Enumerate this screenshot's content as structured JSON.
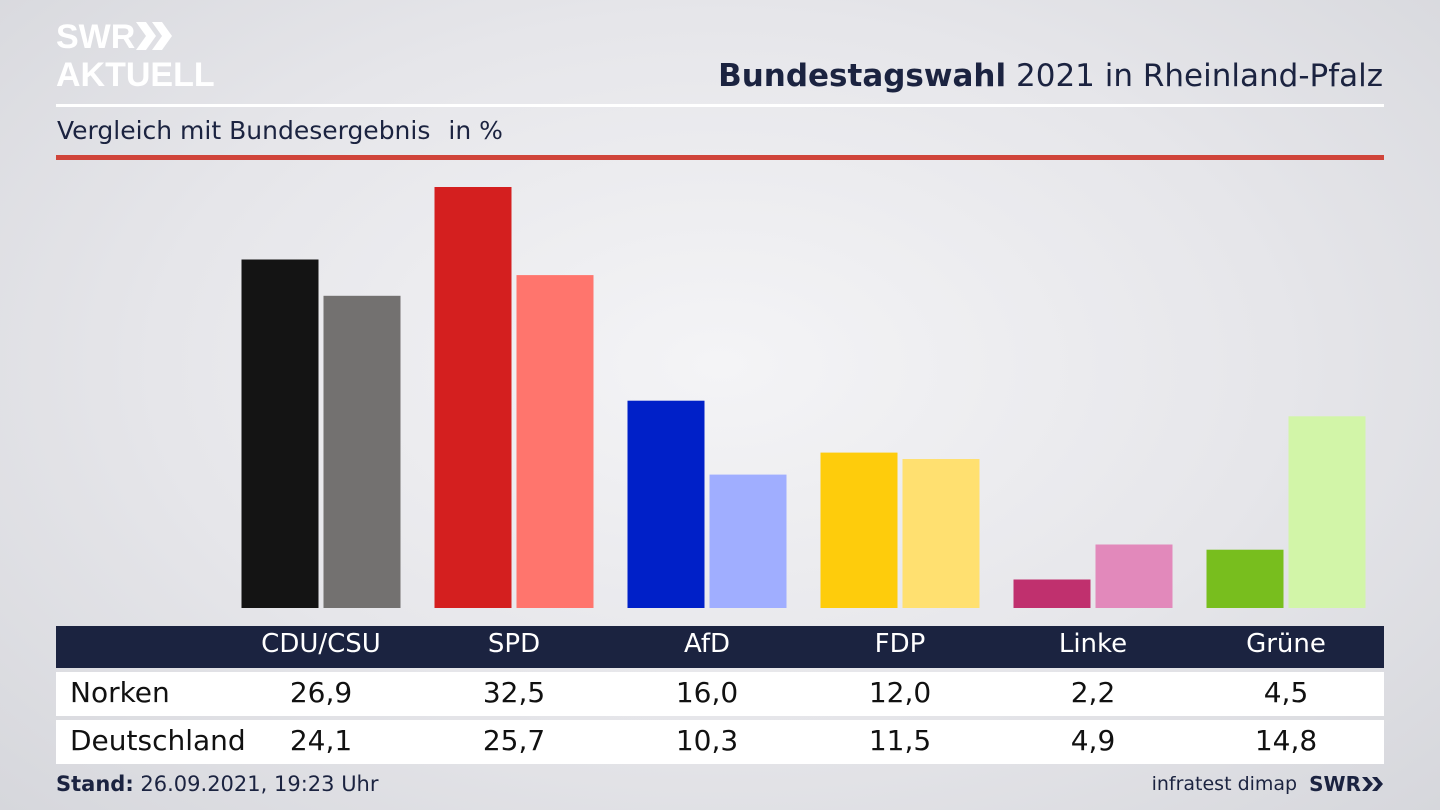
{
  "brand": {
    "logo_line1": "SWR",
    "logo_line2": "AKTUELL",
    "footer_brand": "SWR"
  },
  "header": {
    "title_bold": "Bundestagswahl",
    "title_rest": "2021 in Rheinland-Pfalz",
    "subtitle": "Vergleich mit Bundesergebnis",
    "unit": "in %"
  },
  "footer": {
    "stand_label": "Stand:",
    "stand_value": "26.09.2021, 19:23 Uhr",
    "source": "infratest dimap"
  },
  "chart_data": {
    "type": "bar",
    "title": "Bundestagswahl 2021 in Rheinland-Pfalz",
    "subtitle": "Vergleich mit Bundesergebnis",
    "ylabel": "in %",
    "ylim": [
      0,
      32.5
    ],
    "grid": false,
    "legend": "none",
    "categories": [
      "CDU/CSU",
      "SPD",
      "AfD",
      "FDP",
      "Linke",
      "Grüne"
    ],
    "series": [
      {
        "name": "Norken",
        "values": [
          26.9,
          32.5,
          16.0,
          12.0,
          2.2,
          4.5
        ],
        "labels": [
          "26,9",
          "32,5",
          "16,0",
          "12,0",
          "2,2",
          "4,5"
        ],
        "colors": [
          "#141414",
          "#d41f1f",
          "#0020c8",
          "#fecc0c",
          "#c0306e",
          "#78be1e"
        ]
      },
      {
        "name": "Deutschland",
        "values": [
          24.1,
          25.7,
          10.3,
          11.5,
          4.9,
          14.8
        ],
        "labels": [
          "24,1",
          "25,7",
          "10,3",
          "11,5",
          "4,9",
          "14,8"
        ],
        "colors": [
          "#737170",
          "#ff756d",
          "#a0aeff",
          "#ffe070",
          "#e289bb",
          "#d2f5a8"
        ]
      }
    ]
  }
}
